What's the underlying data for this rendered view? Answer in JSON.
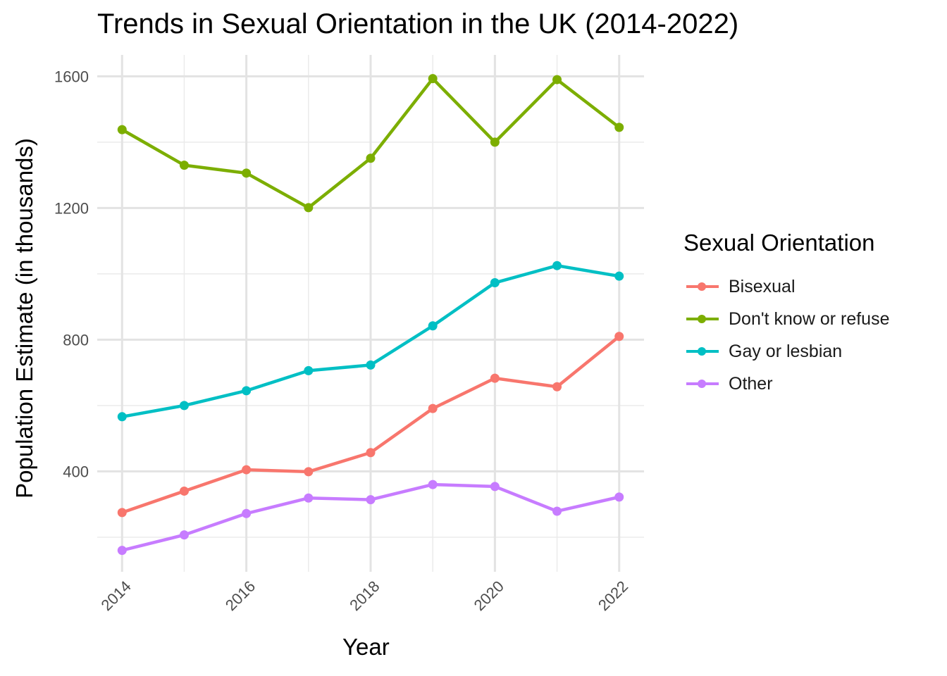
{
  "chart_data": {
    "type": "line",
    "title": "Trends in Sexual Orientation in the UK (2014-2022)",
    "xlabel": "Year",
    "ylabel": "Population Estimate (in thousands)",
    "x": [
      2014,
      2015,
      2016,
      2017,
      2018,
      2019,
      2020,
      2021,
      2022
    ],
    "x_ticks": [
      2014,
      2016,
      2018,
      2020,
      2022
    ],
    "y_ticks": [
      400,
      800,
      1200,
      1600
    ],
    "ylim": [
      95,
      1665
    ],
    "xlim": [
      2013.6,
      2022.4
    ],
    "grid": true,
    "legend_title": "Sexual Orientation",
    "legend_position": "right",
    "series": [
      {
        "name": "Bisexual",
        "color": "#F8766D",
        "values": [
          275,
          340,
          405,
          399,
          457,
          591,
          683,
          657,
          810
        ]
      },
      {
        "name": "Don't know or refuse",
        "color": "#7CAE00",
        "values": [
          1438,
          1330,
          1306,
          1201,
          1351,
          1593,
          1400,
          1590,
          1445
        ]
      },
      {
        "name": "Gay or lesbian",
        "color": "#00BFC4",
        "values": [
          566,
          600,
          645,
          706,
          723,
          842,
          973,
          1025,
          993
        ]
      },
      {
        "name": "Other",
        "color": "#C77CFF",
        "values": [
          160,
          207,
          272,
          319,
          314,
          360,
          354,
          279,
          322
        ]
      }
    ]
  }
}
